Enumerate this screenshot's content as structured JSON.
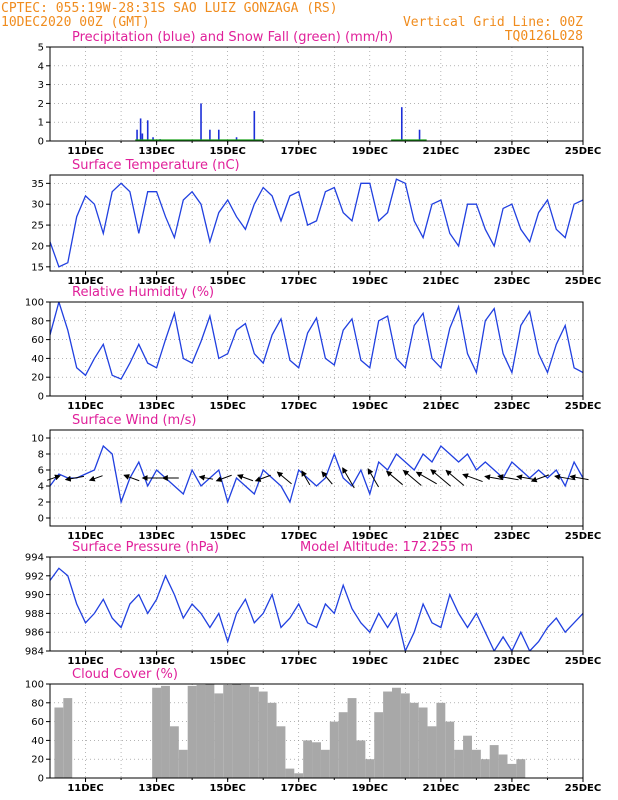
{
  "header": {
    "line1_left": "CPTEC:   055:19W-28:31S   SAO LUIZ GONZAGA (RS)",
    "line2_left": "10DEC2020 00Z (GMT)",
    "line2_right": "Vertical Grid Line: 00Z",
    "line3_right": "TQ0126L028"
  },
  "x_axis": {
    "start": "10DEC2020 00Z",
    "end": "25DEC2020 00Z",
    "tick_labels": [
      "11DEC",
      "13DEC",
      "15DEC",
      "17DEC",
      "19DEC",
      "21DEC",
      "23DEC",
      "25DEC"
    ]
  },
  "colors": {
    "header": "#f08c1e",
    "title": "#e0209a",
    "precip": "#1c2fd8",
    "snow": "#19a019",
    "line": "#2140e0",
    "cloud": "#a8a8a8",
    "grid": "#888888"
  },
  "chart_data": [
    {
      "id": "precip",
      "type": "bar",
      "title": "Precipitation (blue) and Snow Fall (green) (mm/h)",
      "ylim": [
        0,
        5
      ],
      "yticks": [
        0,
        1,
        2,
        3,
        4,
        5
      ],
      "series": [
        {
          "name": "Precipitation",
          "color": "#1c2fd8",
          "x": [
            12.45,
            12.55,
            12.6,
            12.75,
            12.9,
            13.1,
            14.25,
            14.5,
            14.75,
            15.25,
            15.75,
            19.9,
            20.4
          ],
          "values": [
            0.6,
            1.2,
            0.4,
            1.1,
            0.2,
            0.1,
            2.0,
            0.6,
            0.6,
            0.2,
            1.6,
            1.8,
            0.6
          ]
        },
        {
          "name": "Snow Fall",
          "color": "#19a019",
          "x": [],
          "values": []
        }
      ]
    },
    {
      "id": "temp",
      "type": "line",
      "title": "Surface Temperature (nC)",
      "ylim": [
        14,
        37
      ],
      "yticks": [
        15,
        20,
        25,
        30,
        35
      ],
      "x": [
        10.0,
        10.25,
        10.5,
        10.75,
        11.0,
        11.25,
        11.5,
        11.75,
        12.0,
        12.25,
        12.5,
        12.75,
        13.0,
        13.25,
        13.5,
        13.75,
        14.0,
        14.25,
        14.5,
        14.75,
        15.0,
        15.25,
        15.5,
        15.75,
        16.0,
        16.25,
        16.5,
        16.75,
        17.0,
        17.25,
        17.5,
        17.75,
        18.0,
        18.25,
        18.5,
        18.75,
        19.0,
        19.25,
        19.5,
        19.75,
        20.0,
        20.25,
        20.5,
        20.75,
        21.0,
        21.25,
        21.5,
        21.75,
        22.0,
        22.25,
        22.5,
        22.75,
        23.0,
        23.25,
        23.5,
        23.75,
        24.0,
        24.25,
        24.5,
        24.75,
        25.0
      ],
      "values": [
        21,
        15,
        16,
        27,
        32,
        30,
        23,
        33,
        35,
        33,
        23,
        33,
        33,
        27,
        22,
        31,
        33,
        30,
        21,
        28,
        31,
        27,
        24,
        30,
        34,
        32,
        26,
        32,
        33,
        25,
        26,
        33,
        34,
        28,
        26,
        35,
        35,
        26,
        28,
        36,
        35,
        26,
        22,
        30,
        31,
        23,
        20,
        30,
        30,
        24,
        20,
        29,
        30,
        24,
        21,
        28,
        31,
        24,
        22,
        30,
        31
      ]
    },
    {
      "id": "rh",
      "type": "line",
      "title": "Relative Humidity (%)",
      "ylim": [
        0,
        100
      ],
      "yticks": [
        0,
        20,
        40,
        60,
        80,
        100
      ],
      "x": [
        10.0,
        10.25,
        10.5,
        10.75,
        11.0,
        11.25,
        11.5,
        11.75,
        12.0,
        12.25,
        12.5,
        12.75,
        13.0,
        13.25,
        13.5,
        13.75,
        14.0,
        14.25,
        14.5,
        14.75,
        15.0,
        15.25,
        15.5,
        15.75,
        16.0,
        16.25,
        16.5,
        16.75,
        17.0,
        17.25,
        17.5,
        17.75,
        18.0,
        18.25,
        18.5,
        18.75,
        19.0,
        19.25,
        19.5,
        19.75,
        20.0,
        20.25,
        20.5,
        20.75,
        21.0,
        21.25,
        21.5,
        21.75,
        22.0,
        22.25,
        22.5,
        22.75,
        23.0,
        23.25,
        23.5,
        23.75,
        24.0,
        24.25,
        24.5,
        24.75,
        25.0
      ],
      "values": [
        65,
        100,
        70,
        30,
        22,
        40,
        55,
        22,
        18,
        35,
        55,
        35,
        30,
        60,
        88,
        40,
        35,
        58,
        85,
        40,
        45,
        70,
        77,
        45,
        35,
        65,
        82,
        38,
        30,
        67,
        83,
        40,
        33,
        70,
        82,
        38,
        30,
        80,
        85,
        40,
        30,
        75,
        88,
        40,
        30,
        72,
        95,
        45,
        25,
        80,
        93,
        45,
        25,
        75,
        90,
        45,
        25,
        55,
        75,
        30,
        25
      ]
    },
    {
      "id": "wind",
      "type": "line",
      "title": "Surface Wind (m/s)",
      "ylim": [
        -1,
        11
      ],
      "yticks": [
        0,
        2,
        4,
        6,
        8,
        10
      ],
      "x": [
        10.0,
        10.25,
        10.5,
        10.75,
        11.0,
        11.25,
        11.5,
        11.75,
        12.0,
        12.25,
        12.5,
        12.75,
        13.0,
        13.25,
        13.5,
        13.75,
        14.0,
        14.25,
        14.5,
        14.75,
        15.0,
        15.25,
        15.5,
        15.75,
        16.0,
        16.25,
        16.5,
        16.75,
        17.0,
        17.25,
        17.5,
        17.75,
        18.0,
        18.25,
        18.5,
        18.75,
        19.0,
        19.25,
        19.5,
        19.75,
        20.0,
        20.25,
        20.5,
        20.75,
        21.0,
        21.25,
        21.5,
        21.75,
        22.0,
        22.25,
        22.5,
        22.75,
        23.0,
        23.25,
        23.5,
        23.75,
        24.0,
        24.25,
        24.5,
        24.75,
        25.0
      ],
      "values": [
        4,
        5.5,
        5,
        5,
        5.5,
        6,
        9,
        8,
        2,
        5,
        7,
        4,
        6,
        5,
        4,
        3,
        6,
        4,
        5,
        6,
        2,
        5,
        4,
        3,
        6,
        5,
        4,
        2,
        6,
        5,
        4,
        5,
        8,
        5,
        4,
        6,
        3,
        7,
        6,
        8,
        7,
        6,
        8,
        7,
        9,
        8,
        7,
        8,
        6,
        7,
        6,
        5,
        7,
        6,
        5,
        6,
        5,
        6,
        4,
        7,
        5
      ],
      "arrows": [
        {
          "x": 10.1,
          "dir_deg": 20,
          "speed": 4
        },
        {
          "x": 10.7,
          "dir_deg": 190,
          "speed": 6
        },
        {
          "x": 11.3,
          "dir_deg": 200,
          "speed": 4
        },
        {
          "x": 12.3,
          "dir_deg": 160,
          "speed": 5
        },
        {
          "x": 12.9,
          "dir_deg": 180,
          "speed": 7
        },
        {
          "x": 13.4,
          "dir_deg": 180,
          "speed": 5
        },
        {
          "x": 14.4,
          "dir_deg": 170,
          "speed": 4
        },
        {
          "x": 14.9,
          "dir_deg": 200,
          "speed": 5
        },
        {
          "x": 15.5,
          "dir_deg": 160,
          "speed": 5
        },
        {
          "x": 16.0,
          "dir_deg": 200,
          "speed": 5
        },
        {
          "x": 16.6,
          "dir_deg": 140,
          "speed": 6
        },
        {
          "x": 17.2,
          "dir_deg": 120,
          "speed": 5
        },
        {
          "x": 17.8,
          "dir_deg": 130,
          "speed": 5
        },
        {
          "x": 18.4,
          "dir_deg": 120,
          "speed": 8
        },
        {
          "x": 19.1,
          "dir_deg": 120,
          "speed": 7
        },
        {
          "x": 19.7,
          "dir_deg": 140,
          "speed": 7
        },
        {
          "x": 20.2,
          "dir_deg": 140,
          "speed": 8
        },
        {
          "x": 20.6,
          "dir_deg": 150,
          "speed": 8
        },
        {
          "x": 21.0,
          "dir_deg": 140,
          "speed": 9
        },
        {
          "x": 21.4,
          "dir_deg": 140,
          "speed": 8
        },
        {
          "x": 21.9,
          "dir_deg": 160,
          "speed": 7
        },
        {
          "x": 22.5,
          "dir_deg": 170,
          "speed": 6
        },
        {
          "x": 22.9,
          "dir_deg": 170,
          "speed": 7
        },
        {
          "x": 23.4,
          "dir_deg": 170,
          "speed": 6
        },
        {
          "x": 23.8,
          "dir_deg": 200,
          "speed": 6
        },
        {
          "x": 24.5,
          "dir_deg": 170,
          "speed": 7
        },
        {
          "x": 24.9,
          "dir_deg": 170,
          "speed": 6
        }
      ]
    },
    {
      "id": "pres",
      "type": "line",
      "title": "Surface Pressure (hPa)",
      "annotation": "Model Altitude: 172.255 m",
      "ylim": [
        984,
        994
      ],
      "yticks": [
        984,
        986,
        988,
        990,
        992,
        994
      ],
      "x": [
        10.0,
        10.25,
        10.5,
        10.75,
        11.0,
        11.25,
        11.5,
        11.75,
        12.0,
        12.25,
        12.5,
        12.75,
        13.0,
        13.25,
        13.5,
        13.75,
        14.0,
        14.25,
        14.5,
        14.75,
        15.0,
        15.25,
        15.5,
        15.75,
        16.0,
        16.25,
        16.5,
        16.75,
        17.0,
        17.25,
        17.5,
        17.75,
        18.0,
        18.25,
        18.5,
        18.75,
        19.0,
        19.25,
        19.5,
        19.75,
        20.0,
        20.25,
        20.5,
        20.75,
        21.0,
        21.25,
        21.5,
        21.75,
        22.0,
        22.25,
        22.5,
        22.75,
        23.0,
        23.25,
        23.5,
        23.75,
        24.0,
        24.25,
        24.5,
        24.75,
        25.0
      ],
      "values": [
        991.5,
        992.8,
        992.0,
        989.0,
        987.0,
        988.0,
        989.5,
        987.5,
        986.5,
        989.0,
        990.0,
        988.0,
        989.5,
        992.0,
        990.0,
        987.5,
        989.0,
        988.0,
        986.5,
        988.0,
        985.0,
        988.0,
        989.5,
        987.0,
        988.0,
        990.0,
        986.5,
        987.5,
        989.0,
        987.0,
        986.5,
        989.0,
        988.0,
        991.0,
        988.5,
        987.0,
        986.0,
        988.0,
        986.5,
        988.0,
        984.0,
        986.0,
        989.0,
        987.0,
        986.5,
        990.0,
        988.0,
        986.5,
        988.0,
        986.0,
        984.0,
        985.5,
        984.0,
        986.0,
        984.0,
        985.0,
        986.5,
        987.5,
        986.0,
        987.0,
        988.0
      ]
    },
    {
      "id": "cloud",
      "type": "area",
      "title": "Cloud Cover (%)",
      "ylim": [
        0,
        100
      ],
      "yticks": [
        0,
        20,
        40,
        60,
        80,
        100
      ],
      "x": [
        10.0,
        10.25,
        10.5,
        10.75,
        11.0,
        11.25,
        11.5,
        11.75,
        12.0,
        12.25,
        12.5,
        12.75,
        13.0,
        13.25,
        13.5,
        13.75,
        14.0,
        14.25,
        14.5,
        14.75,
        15.0,
        15.25,
        15.5,
        15.75,
        16.0,
        16.25,
        16.5,
        16.75,
        17.0,
        17.25,
        17.5,
        17.75,
        18.0,
        18.25,
        18.5,
        18.75,
        19.0,
        19.25,
        19.5,
        19.75,
        20.0,
        20.25,
        20.5,
        20.75,
        21.0,
        21.25,
        21.5,
        21.75,
        22.0,
        22.25,
        22.5,
        22.75,
        23.0,
        23.25,
        23.5,
        23.75,
        24.0,
        24.25,
        24.5,
        24.75,
        25.0
      ],
      "values": [
        0,
        75,
        85,
        0,
        0,
        0,
        0,
        0,
        0,
        0,
        0,
        0,
        96,
        98,
        55,
        30,
        98,
        99,
        100,
        90,
        99,
        100,
        99,
        97,
        92,
        80,
        55,
        10,
        5,
        40,
        38,
        30,
        60,
        70,
        85,
        40,
        20,
        70,
        92,
        96,
        90,
        80,
        75,
        55,
        80,
        60,
        30,
        45,
        30,
        20,
        35,
        25,
        15,
        20,
        0,
        0,
        0,
        0,
        0,
        0,
        0
      ]
    }
  ]
}
